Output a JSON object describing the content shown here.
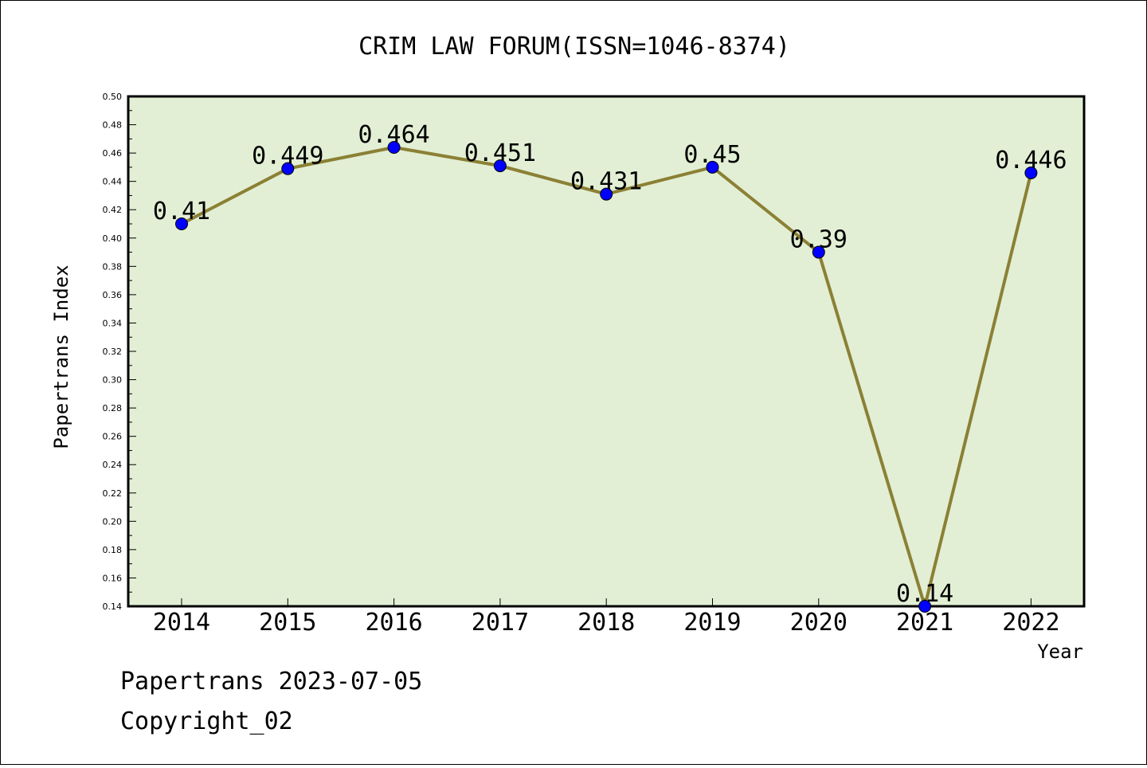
{
  "chart_data": {
    "type": "line",
    "title": "CRIM LAW FORUM(ISSN=1046-8374)",
    "xlabel": "Year",
    "ylabel": "Papertrans Index",
    "categories": [
      "2014",
      "2015",
      "2016",
      "2017",
      "2018",
      "2019",
      "2020",
      "2021",
      "2022"
    ],
    "values": [
      0.41,
      0.449,
      0.464,
      0.451,
      0.431,
      0.45,
      0.39,
      0.14,
      0.446
    ],
    "data_labels": [
      "0.41",
      "0.449",
      "0.464",
      "0.451",
      "0.431",
      "0.45",
      "0.39",
      "0.14",
      "0.446"
    ],
    "ylim": [
      0.14,
      0.5
    ],
    "yticks": [
      "0.14",
      "0.16",
      "0.18",
      "0.20",
      "0.22",
      "0.24",
      "0.26",
      "0.28",
      "0.30",
      "0.32",
      "0.34",
      "0.36",
      "0.38",
      "0.40",
      "0.42",
      "0.44",
      "0.46",
      "0.48",
      "0.50"
    ],
    "grid": false,
    "colors": {
      "plot_bg": "#e2efd5",
      "line": "#8b8034",
      "marker": "#0000ff"
    }
  },
  "footer": {
    "date_line": "Papertrans 2023-07-05",
    "copyright": "Copyright_02"
  }
}
